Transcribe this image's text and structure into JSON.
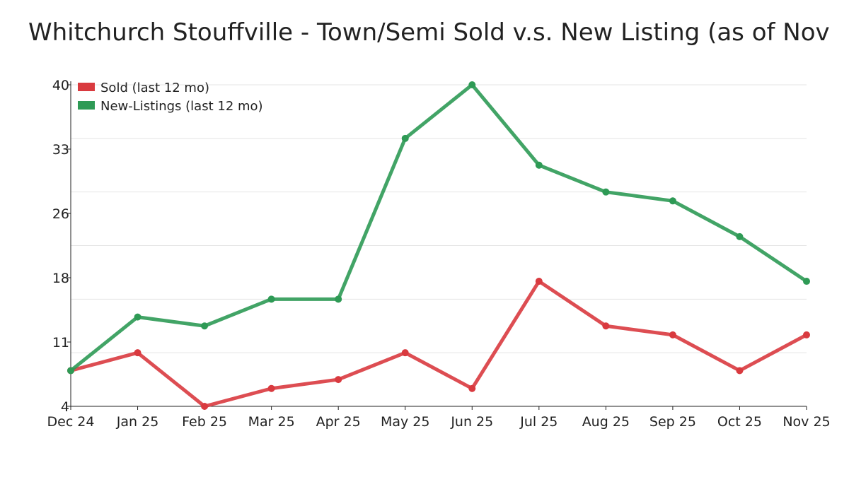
{
  "chart_data": {
    "type": "line",
    "title": "Whitchurch Stouffville - Town/Semi Sold v.s. New Listing (as of Nov",
    "xlabel": "",
    "ylabel": "",
    "categories": [
      "Dec 24",
      "Jan 25",
      "Feb 25",
      "Mar 25",
      "Apr 25",
      "May 25",
      "Jun 25",
      "Jul 25",
      "Aug 25",
      "Sep 25",
      "Oct 25",
      "Nov 25"
    ],
    "ylim": [
      4,
      40
    ],
    "yticks": [
      4,
      11.2,
      18.4,
      25.6,
      32.8,
      40
    ],
    "ytick_labels": [
      "4",
      "11",
      "18",
      "26",
      "33",
      "40"
    ],
    "gridlines": [
      10,
      16,
      22,
      28,
      34,
      40
    ],
    "legend_position": "top-left",
    "series": [
      {
        "name": "Sold (last 12 mo)",
        "color": "#d93a3f",
        "values": [
          8,
          10,
          4,
          6,
          7,
          10,
          6,
          18,
          13,
          12,
          8,
          12
        ]
      },
      {
        "name": "New-Listings (last 12 mo)",
        "color": "#2e9a55",
        "values": [
          8,
          14,
          13,
          16,
          16,
          34,
          40,
          31,
          28,
          27,
          23,
          18
        ]
      }
    ]
  }
}
